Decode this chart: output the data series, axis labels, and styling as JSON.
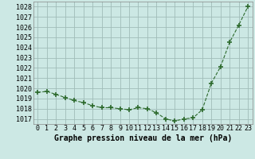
{
  "x": [
    0,
    1,
    2,
    3,
    4,
    5,
    6,
    7,
    8,
    9,
    10,
    11,
    12,
    13,
    14,
    15,
    16,
    17,
    18,
    19,
    20,
    21,
    22,
    23
  ],
  "y": [
    1019.6,
    1019.7,
    1019.4,
    1019.1,
    1018.8,
    1018.6,
    1018.3,
    1018.1,
    1018.1,
    1018.0,
    1017.9,
    1018.1,
    1018.0,
    1017.6,
    1017.0,
    1016.8,
    1017.0,
    1017.1,
    1017.9,
    1020.5,
    1022.1,
    1024.5,
    1026.2,
    1028.0
  ],
  "line_color": "#2d6a2d",
  "marker": "+",
  "marker_size": 4,
  "bg_color": "#cce8e4",
  "grid_color": "#a0bcb8",
  "xlabel": "Graphe pression niveau de la mer (hPa)",
  "xlabel_fontsize": 7,
  "tick_fontsize": 6,
  "ylim": [
    1016.5,
    1028.5
  ],
  "xlim": [
    -0.5,
    23.5
  ],
  "yticks": [
    1017,
    1018,
    1019,
    1020,
    1021,
    1022,
    1023,
    1024,
    1025,
    1026,
    1027,
    1028
  ],
  "xticks": [
    0,
    1,
    2,
    3,
    4,
    5,
    6,
    7,
    8,
    9,
    10,
    11,
    12,
    13,
    14,
    15,
    16,
    17,
    18,
    19,
    20,
    21,
    22,
    23
  ]
}
